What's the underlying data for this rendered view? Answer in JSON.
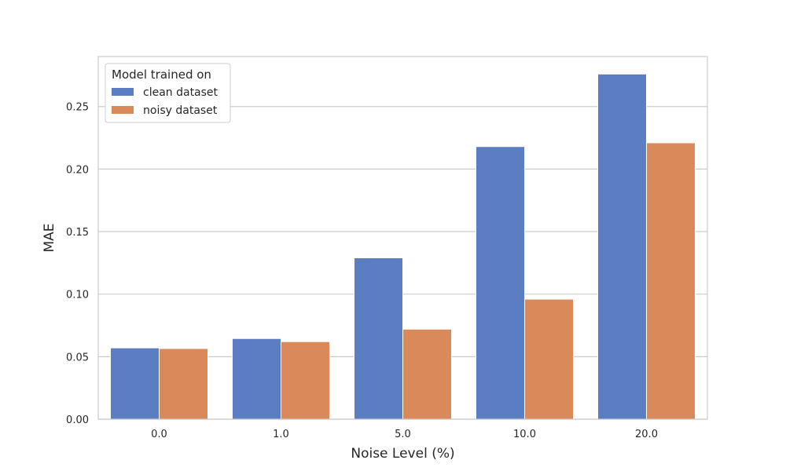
{
  "chart_data": {
    "type": "bar",
    "title": "",
    "xlabel": "Noise Level (%)",
    "ylabel": "MAE",
    "categories": [
      "0.0",
      "1.0",
      "5.0",
      "10.0",
      "20.0"
    ],
    "series": [
      {
        "name": "clean dataset",
        "color": "#5a7ec1",
        "values": [
          0.057,
          0.0645,
          0.129,
          0.218,
          0.276
        ]
      },
      {
        "name": "noisy dataset",
        "color": "#d9895a",
        "values": [
          0.0565,
          0.062,
          0.072,
          0.096,
          0.221
        ]
      }
    ],
    "ylim": [
      0,
      0.29
    ],
    "yticks": [
      0.0,
      0.05,
      0.1,
      0.15,
      0.2,
      0.25
    ],
    "ytick_labels": [
      "0.00",
      "0.05",
      "0.10",
      "0.15",
      "0.20",
      "0.25"
    ],
    "grid": "horizontal",
    "legend": {
      "title": "Model trained on",
      "placement": "top-left"
    }
  }
}
